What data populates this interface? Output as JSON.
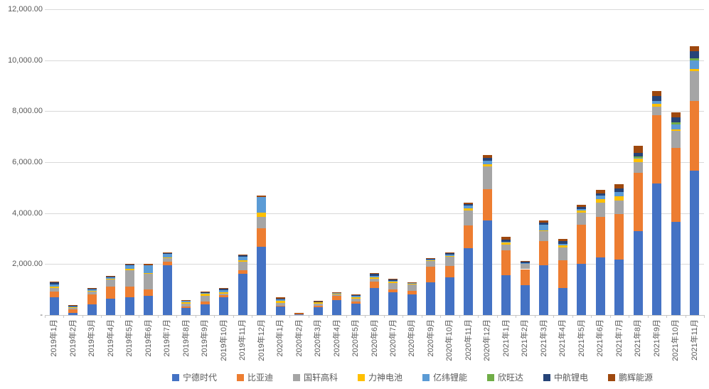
{
  "chart_data": {
    "type": "bar",
    "stacked": true,
    "title": "",
    "xlabel": "",
    "ylabel": "",
    "grid": true,
    "legend_position": "bottom",
    "categories": [
      "2019年1月",
      "2019年2月",
      "2019年3月",
      "2019年4月",
      "2019年5月",
      "2019年6月",
      "2019年7月",
      "2019年8月",
      "2019年9月",
      "2019年10月",
      "2019年11月",
      "2019年12月",
      "2020年1月",
      "2020年2月",
      "2020年3月",
      "2020年4月",
      "2020年5月",
      "2020年6月",
      "2020年7月",
      "2020年8月",
      "2020年9月",
      "2020年10月",
      "2020年11月",
      "2020年12月",
      "2021年1月",
      "2021年2月",
      "2021年3月",
      "2021年4月",
      "2021年5月",
      "2021年6月",
      "2021年7月",
      "2021年8月",
      "2021年9月",
      "2021年10月",
      "2021年11月"
    ],
    "series": [
      {
        "name": "宁德时代",
        "color": "#4472C4",
        "values": [
          700,
          80,
          410,
          640,
          690,
          760,
          1950,
          280,
          410,
          690,
          1620,
          2690,
          345,
          50,
          300,
          590,
          440,
          1060,
          890,
          810,
          1290,
          1480,
          2610,
          3700,
          1570,
          1170,
          1950,
          1060,
          2020,
          2270,
          2175,
          3290,
          5150,
          3655,
          5660
        ]
      },
      {
        "name": "比亚迪",
        "color": "#ED7D31",
        "values": [
          230,
          150,
          390,
          465,
          435,
          250,
          150,
          60,
          110,
          90,
          140,
          720,
          30,
          15,
          65,
          170,
          90,
          250,
          120,
          130,
          605,
          445,
          910,
          1250,
          980,
          630,
          940,
          1090,
          1530,
          1580,
          1795,
          2280,
          2695,
          2900,
          2740
        ]
      },
      {
        "name": "国轩高科",
        "color": "#A5A5A5",
        "values": [
          120,
          60,
          110,
          305,
          630,
          620,
          120,
          120,
          240,
          60,
          325,
          455,
          90,
          15,
          95,
          60,
          110,
          120,
          235,
          260,
          215,
          370,
          580,
          880,
          210,
          210,
          400,
          490,
          460,
          560,
          530,
          420,
          345,
          670,
          1170
        ]
      },
      {
        "name": "力神电池",
        "color": "#FFC000",
        "values": [
          65,
          25,
          40,
          25,
          65,
          30,
          40,
          45,
          65,
          60,
          65,
          140,
          90,
          5,
          35,
          30,
          50,
          60,
          60,
          25,
          40,
          20,
          90,
          90,
          80,
          20,
          20,
          85,
          90,
          140,
          160,
          140,
          95,
          55,
          85
        ]
      },
      {
        "name": "亿纬锂能",
        "color": "#5B9BD5",
        "values": [
          95,
          25,
          60,
          60,
          120,
          280,
          130,
          45,
          45,
          90,
          150,
          630,
          55,
          0,
          25,
          20,
          50,
          55,
          30,
          25,
          25,
          55,
          95,
          140,
          30,
          20,
          230,
          75,
          60,
          140,
          165,
          40,
          120,
          195,
          335
        ]
      },
      {
        "name": "欣旺达",
        "color": "#70AD47",
        "values": [
          0,
          0,
          0,
          0,
          0,
          0,
          0,
          0,
          0,
          0,
          0,
          0,
          0,
          0,
          0,
          0,
          0,
          0,
          0,
          0,
          0,
          0,
          0,
          0,
          0,
          0,
          0,
          0,
          0,
          0,
          0,
          40,
          0,
          85,
          85
        ]
      },
      {
        "name": "中航锂电",
        "color": "#264478",
        "values": [
          60,
          30,
          30,
          15,
          30,
          0,
          30,
          30,
          30,
          40,
          40,
          0,
          45,
          5,
          20,
          20,
          40,
          60,
          50,
          25,
          40,
          55,
          55,
          120,
          80,
          30,
          90,
          110,
          80,
          90,
          140,
          160,
          185,
          195,
          280
        ]
      },
      {
        "name": "鹏辉能源",
        "color": "#9E480E",
        "values": [
          30,
          20,
          20,
          30,
          40,
          65,
          30,
          15,
          15,
          30,
          25,
          65,
          35,
          5,
          10,
          10,
          20,
          45,
          45,
          15,
          30,
          35,
          60,
          110,
          120,
          30,
          80,
          75,
          80,
          140,
          160,
          280,
          190,
          195,
          195
        ]
      }
    ],
    "y_axis": {
      "min": 0,
      "max": 12000,
      "step": 2000,
      "tick_labels_top_to_bottom": [
        "12,000.00",
        "10,000.00",
        "8,000.00",
        "6,000.00",
        "4,000.00",
        "2,000.00",
        "-"
      ]
    }
  },
  "colors": {
    "background": "#FFFFFF",
    "gridline": "#D9D9D9",
    "axis": "#C6C6C6",
    "label_text": "#595959"
  }
}
